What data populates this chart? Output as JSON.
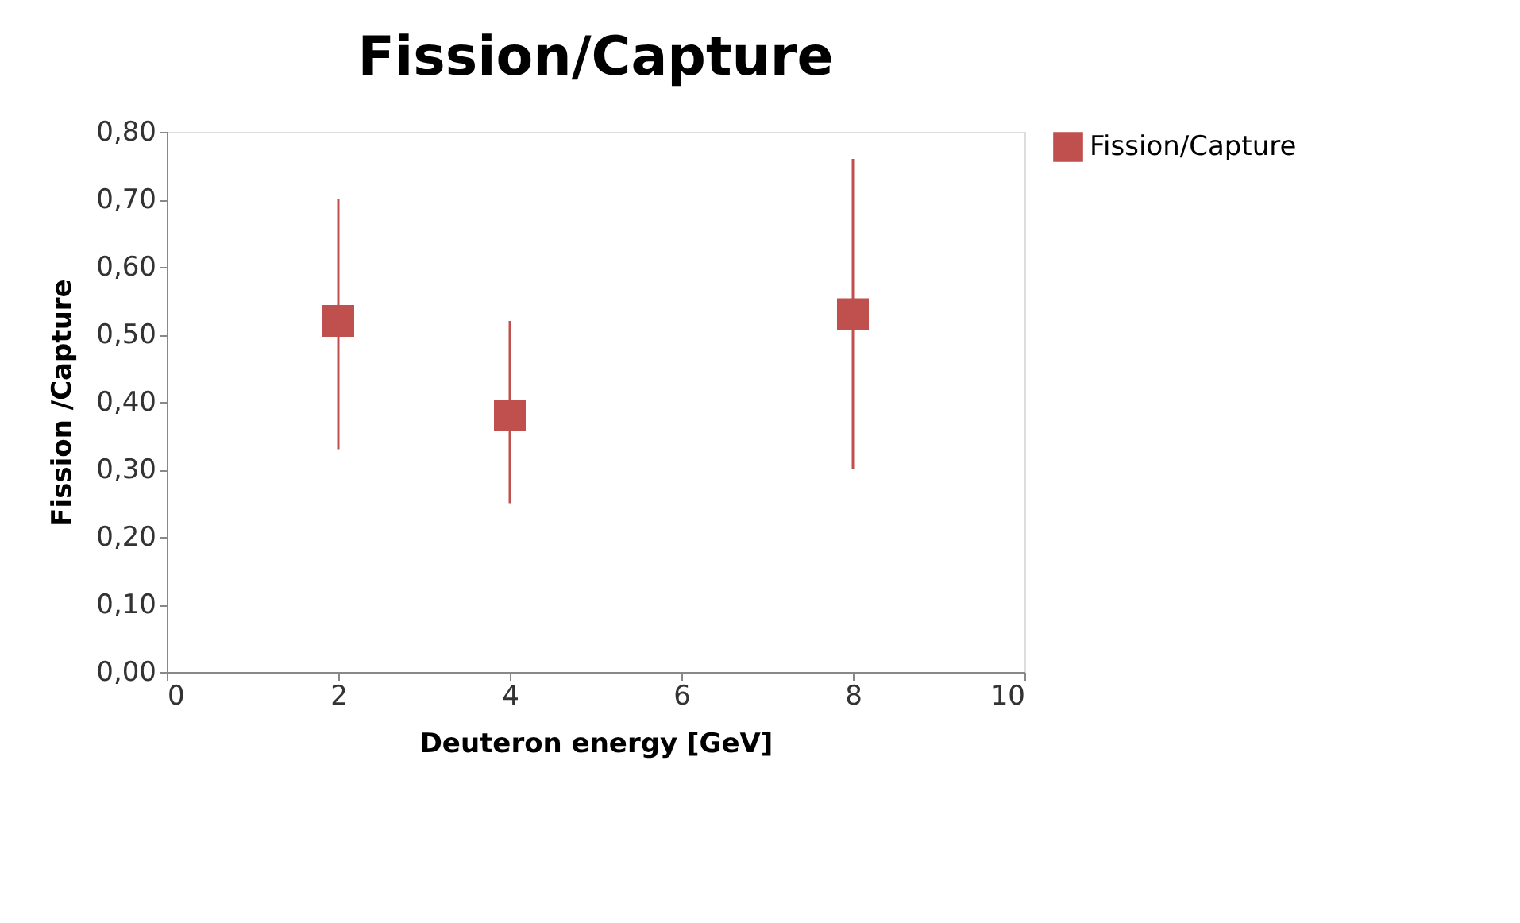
{
  "chart_data": {
    "type": "scatter",
    "title": "Fission/Capture",
    "xlabel": "Deuteron energy [GeV]",
    "ylabel": "Fission /Capture",
    "x": [
      2,
      4,
      8
    ],
    "series": [
      {
        "name": "Fission/Capture",
        "color": "#c0504d",
        "values": [
          0.52,
          0.38,
          0.53
        ],
        "errors": [
          [
            0.33,
            0.7
          ],
          [
            0.25,
            0.52
          ],
          [
            0.3,
            0.76
          ]
        ]
      }
    ],
    "xlim": [
      0,
      10
    ],
    "xticks": [
      0,
      2,
      4,
      6,
      8,
      10
    ],
    "ylim": [
      0,
      0.8
    ],
    "yticks": [
      {
        "value": 0,
        "label": "0,00"
      },
      {
        "value": 0.1,
        "label": "0,10"
      },
      {
        "value": 0.2,
        "label": "0,20"
      },
      {
        "value": 0.3,
        "label": "0,30"
      },
      {
        "value": 0.4,
        "label": "0,40"
      },
      {
        "value": 0.5,
        "label": "0,50"
      },
      {
        "value": 0.6,
        "label": "0,60"
      },
      {
        "value": 0.7,
        "label": "0,70"
      },
      {
        "value": 0.8,
        "label": "0,80"
      }
    ],
    "grid": false,
    "legend": "right",
    "marker": "square"
  }
}
